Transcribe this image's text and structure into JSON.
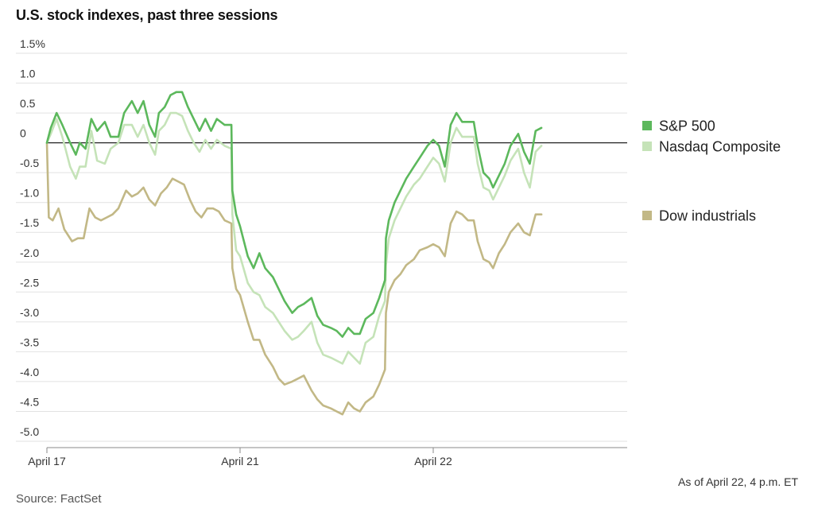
{
  "title": "U.S. stock indexes, past three sessions",
  "footnote": "As of April 22, 4 p.m. ET",
  "source": "Source: FactSet",
  "chart_data": {
    "type": "line",
    "title": "U.S. stock indexes, past three sessions",
    "xlabel": "",
    "ylabel": "",
    "ylim": [
      -5.0,
      1.5
    ],
    "y_ticks": [
      1.5,
      1.0,
      0.5,
      0,
      -0.5,
      -1.0,
      -1.5,
      -2.0,
      -2.5,
      -3.0,
      -3.5,
      -4.0,
      -4.5,
      -5.0
    ],
    "y_tick_labels": [
      "1.5%",
      "1.0",
      "0.5",
      "0",
      "-0.5",
      "-1.0",
      "-1.5",
      "-2.0",
      "-2.5",
      "-3.0",
      "-3.5",
      "-4.0",
      "-4.5",
      "-5.0"
    ],
    "x_range": [
      0,
      3.0
    ],
    "x_ticks": [
      {
        "x": 0,
        "label": "April 17"
      },
      {
        "x": 1,
        "label": "April 21"
      },
      {
        "x": 2,
        "label": "April 22"
      }
    ],
    "grid": true,
    "legend_position": "right",
    "series": [
      {
        "name": "S&P 500",
        "color": "#5cb85c",
        "points": [
          [
            0,
            0
          ],
          [
            0.02,
            0.25
          ],
          [
            0.05,
            0.5
          ],
          [
            0.08,
            0.3
          ],
          [
            0.12,
            0
          ],
          [
            0.15,
            -0.2
          ],
          [
            0.17,
            0
          ],
          [
            0.2,
            -0.1
          ],
          [
            0.23,
            0.4
          ],
          [
            0.26,
            0.2
          ],
          [
            0.3,
            0.35
          ],
          [
            0.33,
            0.1
          ],
          [
            0.37,
            0.1
          ],
          [
            0.4,
            0.5
          ],
          [
            0.44,
            0.7
          ],
          [
            0.47,
            0.5
          ],
          [
            0.5,
            0.7
          ],
          [
            0.53,
            0.3
          ],
          [
            0.56,
            0.1
          ],
          [
            0.58,
            0.5
          ],
          [
            0.61,
            0.6
          ],
          [
            0.64,
            0.8
          ],
          [
            0.67,
            0.85
          ],
          [
            0.7,
            0.85
          ],
          [
            0.73,
            0.6
          ],
          [
            0.76,
            0.4
          ],
          [
            0.79,
            0.2
          ],
          [
            0.82,
            0.4
          ],
          [
            0.85,
            0.2
          ],
          [
            0.88,
            0.4
          ],
          [
            0.92,
            0.3
          ],
          [
            0.955,
            0.3
          ],
          [
            0.96,
            -0.8
          ],
          [
            0.98,
            -1.2
          ],
          [
            1.0,
            -1.4
          ],
          [
            1.04,
            -1.9
          ],
          [
            1.07,
            -2.1
          ],
          [
            1.1,
            -1.85
          ],
          [
            1.13,
            -2.1
          ],
          [
            1.17,
            -2.25
          ],
          [
            1.2,
            -2.45
          ],
          [
            1.23,
            -2.65
          ],
          [
            1.27,
            -2.85
          ],
          [
            1.3,
            -2.75
          ],
          [
            1.33,
            -2.7
          ],
          [
            1.37,
            -2.6
          ],
          [
            1.4,
            -2.9
          ],
          [
            1.43,
            -3.05
          ],
          [
            1.47,
            -3.1
          ],
          [
            1.5,
            -3.15
          ],
          [
            1.53,
            -3.25
          ],
          [
            1.56,
            -3.1
          ],
          [
            1.59,
            -3.2
          ],
          [
            1.62,
            -3.2
          ],
          [
            1.65,
            -2.95
          ],
          [
            1.69,
            -2.85
          ],
          [
            1.72,
            -2.6
          ],
          [
            1.75,
            -2.3
          ],
          [
            1.755,
            -1.6
          ],
          [
            1.77,
            -1.3
          ],
          [
            1.8,
            -1.0
          ],
          [
            1.83,
            -0.8
          ],
          [
            1.86,
            -0.6
          ],
          [
            1.9,
            -0.4
          ],
          [
            1.93,
            -0.25
          ],
          [
            1.97,
            -0.05
          ],
          [
            2.0,
            0.05
          ],
          [
            2.03,
            -0.05
          ],
          [
            2.06,
            -0.4
          ],
          [
            2.09,
            0.3
          ],
          [
            2.12,
            0.5
          ],
          [
            2.15,
            0.35
          ],
          [
            2.18,
            0.35
          ],
          [
            2.21,
            0.35
          ],
          [
            2.23,
            -0.05
          ],
          [
            2.26,
            -0.5
          ],
          [
            2.29,
            -0.6
          ],
          [
            2.31,
            -0.75
          ],
          [
            2.34,
            -0.55
          ],
          [
            2.37,
            -0.35
          ],
          [
            2.4,
            -0.05
          ],
          [
            2.44,
            0.15
          ],
          [
            2.47,
            -0.15
          ],
          [
            2.5,
            -0.35
          ],
          [
            2.53,
            0.2
          ],
          [
            2.56,
            0.25
          ]
        ]
      },
      {
        "name": "Nasdaq Composite",
        "color": "#c5e3b8",
        "points": [
          [
            0,
            0
          ],
          [
            0.02,
            0.15
          ],
          [
            0.05,
            0.4
          ],
          [
            0.08,
            0.1
          ],
          [
            0.12,
            -0.4
          ],
          [
            0.15,
            -0.6
          ],
          [
            0.17,
            -0.4
          ],
          [
            0.2,
            -0.4
          ],
          [
            0.23,
            0.2
          ],
          [
            0.26,
            -0.3
          ],
          [
            0.3,
            -0.35
          ],
          [
            0.33,
            -0.1
          ],
          [
            0.37,
            0
          ],
          [
            0.4,
            0.3
          ],
          [
            0.44,
            0.3
          ],
          [
            0.47,
            0.1
          ],
          [
            0.5,
            0.3
          ],
          [
            0.53,
            0
          ],
          [
            0.56,
            -0.2
          ],
          [
            0.58,
            0.2
          ],
          [
            0.61,
            0.3
          ],
          [
            0.64,
            0.5
          ],
          [
            0.67,
            0.5
          ],
          [
            0.7,
            0.45
          ],
          [
            0.73,
            0.2
          ],
          [
            0.76,
            0
          ],
          [
            0.79,
            -0.15
          ],
          [
            0.82,
            0.05
          ],
          [
            0.85,
            -0.1
          ],
          [
            0.88,
            0.05
          ],
          [
            0.92,
            -0.05
          ],
          [
            0.955,
            -0.1
          ],
          [
            0.96,
            -1.2
          ],
          [
            0.98,
            -1.8
          ],
          [
            1.0,
            -1.9
          ],
          [
            1.04,
            -2.35
          ],
          [
            1.07,
            -2.5
          ],
          [
            1.1,
            -2.55
          ],
          [
            1.13,
            -2.75
          ],
          [
            1.17,
            -2.85
          ],
          [
            1.2,
            -3.0
          ],
          [
            1.23,
            -3.15
          ],
          [
            1.27,
            -3.3
          ],
          [
            1.3,
            -3.25
          ],
          [
            1.33,
            -3.15
          ],
          [
            1.37,
            -3.0
          ],
          [
            1.4,
            -3.35
          ],
          [
            1.43,
            -3.55
          ],
          [
            1.47,
            -3.6
          ],
          [
            1.5,
            -3.65
          ],
          [
            1.53,
            -3.7
          ],
          [
            1.56,
            -3.5
          ],
          [
            1.59,
            -3.6
          ],
          [
            1.62,
            -3.7
          ],
          [
            1.65,
            -3.35
          ],
          [
            1.69,
            -3.25
          ],
          [
            1.72,
            -2.9
          ],
          [
            1.75,
            -2.65
          ],
          [
            1.755,
            -2.05
          ],
          [
            1.77,
            -1.6
          ],
          [
            1.8,
            -1.3
          ],
          [
            1.83,
            -1.1
          ],
          [
            1.86,
            -0.9
          ],
          [
            1.9,
            -0.7
          ],
          [
            1.93,
            -0.6
          ],
          [
            1.97,
            -0.4
          ],
          [
            2.0,
            -0.25
          ],
          [
            2.03,
            -0.35
          ],
          [
            2.06,
            -0.65
          ],
          [
            2.09,
            0
          ],
          [
            2.12,
            0.25
          ],
          [
            2.15,
            0.1
          ],
          [
            2.18,
            0.1
          ],
          [
            2.21,
            0.1
          ],
          [
            2.23,
            -0.35
          ],
          [
            2.26,
            -0.75
          ],
          [
            2.29,
            -0.8
          ],
          [
            2.31,
            -0.95
          ],
          [
            2.34,
            -0.75
          ],
          [
            2.37,
            -0.55
          ],
          [
            2.4,
            -0.3
          ],
          [
            2.44,
            -0.1
          ],
          [
            2.47,
            -0.5
          ],
          [
            2.5,
            -0.75
          ],
          [
            2.53,
            -0.15
          ],
          [
            2.56,
            -0.05
          ]
        ]
      },
      {
        "name": "Dow industrials",
        "color": "#c2b886",
        "points": [
          [
            0,
            0
          ],
          [
            0.01,
            -1.25
          ],
          [
            0.03,
            -1.3
          ],
          [
            0.06,
            -1.1
          ],
          [
            0.09,
            -1.45
          ],
          [
            0.13,
            -1.65
          ],
          [
            0.16,
            -1.6
          ],
          [
            0.19,
            -1.6
          ],
          [
            0.22,
            -1.1
          ],
          [
            0.25,
            -1.25
          ],
          [
            0.28,
            -1.3
          ],
          [
            0.31,
            -1.25
          ],
          [
            0.34,
            -1.2
          ],
          [
            0.37,
            -1.1
          ],
          [
            0.41,
            -0.8
          ],
          [
            0.44,
            -0.9
          ],
          [
            0.47,
            -0.85
          ],
          [
            0.5,
            -0.75
          ],
          [
            0.53,
            -0.95
          ],
          [
            0.56,
            -1.05
          ],
          [
            0.59,
            -0.85
          ],
          [
            0.62,
            -0.75
          ],
          [
            0.65,
            -0.6
          ],
          [
            0.68,
            -0.65
          ],
          [
            0.71,
            -0.7
          ],
          [
            0.74,
            -0.95
          ],
          [
            0.77,
            -1.15
          ],
          [
            0.8,
            -1.25
          ],
          [
            0.83,
            -1.1
          ],
          [
            0.86,
            -1.1
          ],
          [
            0.89,
            -1.15
          ],
          [
            0.92,
            -1.3
          ],
          [
            0.955,
            -1.35
          ],
          [
            0.96,
            -2.1
          ],
          [
            0.98,
            -2.45
          ],
          [
            1.0,
            -2.55
          ],
          [
            1.04,
            -3.0
          ],
          [
            1.07,
            -3.3
          ],
          [
            1.1,
            -3.3
          ],
          [
            1.13,
            -3.55
          ],
          [
            1.17,
            -3.75
          ],
          [
            1.2,
            -3.95
          ],
          [
            1.23,
            -4.05
          ],
          [
            1.27,
            -4.0
          ],
          [
            1.3,
            -3.95
          ],
          [
            1.33,
            -3.9
          ],
          [
            1.37,
            -4.15
          ],
          [
            1.4,
            -4.3
          ],
          [
            1.43,
            -4.4
          ],
          [
            1.47,
            -4.45
          ],
          [
            1.5,
            -4.5
          ],
          [
            1.53,
            -4.55
          ],
          [
            1.56,
            -4.35
          ],
          [
            1.59,
            -4.45
          ],
          [
            1.62,
            -4.5
          ],
          [
            1.65,
            -4.35
          ],
          [
            1.69,
            -4.25
          ],
          [
            1.72,
            -4.05
          ],
          [
            1.75,
            -3.8
          ],
          [
            1.755,
            -2.85
          ],
          [
            1.77,
            -2.5
          ],
          [
            1.8,
            -2.3
          ],
          [
            1.83,
            -2.2
          ],
          [
            1.86,
            -2.05
          ],
          [
            1.9,
            -1.95
          ],
          [
            1.93,
            -1.8
          ],
          [
            1.97,
            -1.75
          ],
          [
            2.0,
            -1.7
          ],
          [
            2.03,
            -1.75
          ],
          [
            2.06,
            -1.9
          ],
          [
            2.09,
            -1.35
          ],
          [
            2.12,
            -1.15
          ],
          [
            2.15,
            -1.2
          ],
          [
            2.18,
            -1.3
          ],
          [
            2.21,
            -1.3
          ],
          [
            2.23,
            -1.65
          ],
          [
            2.26,
            -1.95
          ],
          [
            2.29,
            -2.0
          ],
          [
            2.31,
            -2.1
          ],
          [
            2.34,
            -1.85
          ],
          [
            2.37,
            -1.7
          ],
          [
            2.4,
            -1.5
          ],
          [
            2.44,
            -1.35
          ],
          [
            2.47,
            -1.5
          ],
          [
            2.5,
            -1.55
          ],
          [
            2.53,
            -1.2
          ],
          [
            2.56,
            -1.2
          ]
        ]
      }
    ]
  }
}
